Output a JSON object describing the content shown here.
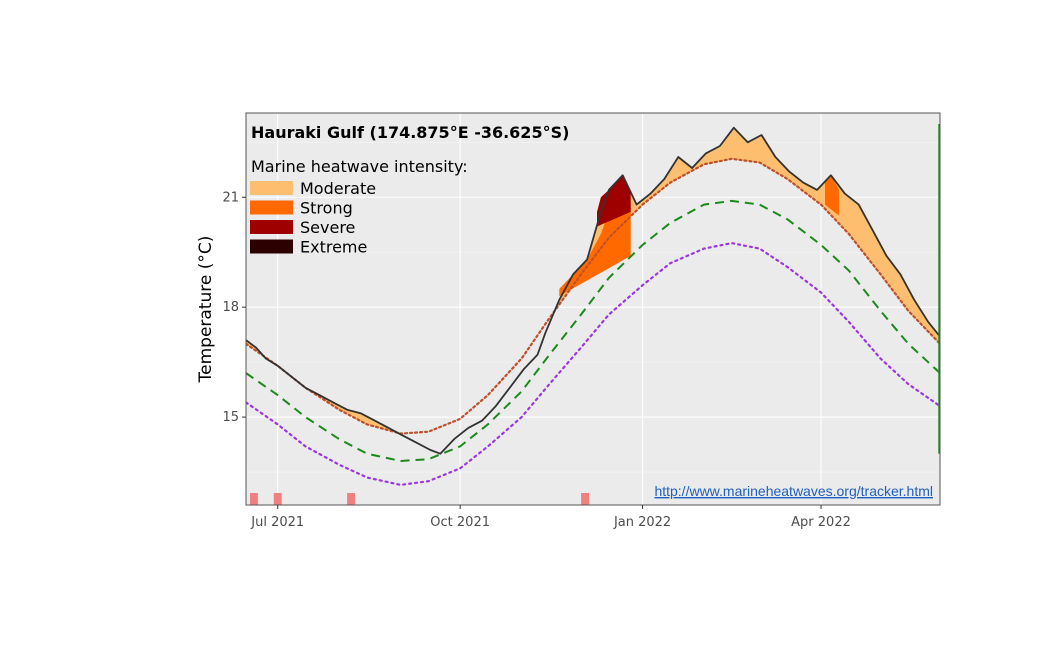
{
  "chart_data": {
    "type": "area",
    "title": "Hauraki Gulf (174.875°E -36.625°S)",
    "xlabel": "",
    "ylabel": "Temperature (°C)",
    "x_start": "2021-06-15",
    "x_end": "2022-05-31",
    "ylim": [
      12.6,
      23.3
    ],
    "yticks": [
      15,
      18,
      21
    ],
    "xticks": [
      {
        "date": "2021-07-01",
        "label": "Jul 2021"
      },
      {
        "date": "2021-10-01",
        "label": "Oct 2021"
      },
      {
        "date": "2022-01-01",
        "label": "Jan 2022"
      },
      {
        "date": "2022-04-01",
        "label": "Apr 2022"
      }
    ],
    "grid": true,
    "legend": {
      "title": "Marine heatwave intensity:",
      "position": "top-left",
      "entries": [
        {
          "label": "Moderate",
          "color": "#fdbf6f"
        },
        {
          "label": "Strong",
          "color": "#ff6900"
        },
        {
          "label": "Severe",
          "color": "#9e0000"
        },
        {
          "label": "Extreme",
          "color": "#2d0000"
        }
      ]
    },
    "colors": {
      "moderate": "#fdbf6f",
      "strong": "#ff6900",
      "severe": "#9e0000",
      "extreme": "#2d0000",
      "temperature": "#333333",
      "threshold": "#c0502a",
      "climatology": "#1b8a1b",
      "cold_threshold": "#9b37e0",
      "event_marker": "#f08080",
      "panel": "#ebebeb",
      "vertical_line": "#1b8a1b"
    },
    "series": [
      {
        "role": "temperature",
        "points": [
          [
            "2021-06-15",
            17.1
          ],
          [
            "2021-06-20",
            16.9
          ],
          [
            "2021-06-25",
            16.6
          ],
          [
            "2021-07-01",
            16.4
          ],
          [
            "2021-07-08",
            16.1
          ],
          [
            "2021-07-15",
            15.8
          ],
          [
            "2021-07-22",
            15.6
          ],
          [
            "2021-07-29",
            15.4
          ],
          [
            "2021-08-05",
            15.2
          ],
          [
            "2021-08-12",
            15.1
          ],
          [
            "2021-08-19",
            14.9
          ],
          [
            "2021-08-26",
            14.7
          ],
          [
            "2021-09-02",
            14.5
          ],
          [
            "2021-09-09",
            14.3
          ],
          [
            "2021-09-16",
            14.1
          ],
          [
            "2021-09-21",
            14.0
          ],
          [
            "2021-09-28",
            14.4
          ],
          [
            "2021-10-05",
            14.7
          ],
          [
            "2021-10-12",
            14.9
          ],
          [
            "2021-10-19",
            15.3
          ],
          [
            "2021-10-26",
            15.8
          ],
          [
            "2021-11-02",
            16.3
          ],
          [
            "2021-11-09",
            16.7
          ],
          [
            "2021-11-13",
            17.3
          ],
          [
            "2021-11-20",
            18.2
          ],
          [
            "2021-11-27",
            18.9
          ],
          [
            "2021-12-04",
            19.3
          ],
          [
            "2021-12-11",
            20.6
          ],
          [
            "2021-12-15",
            21.2
          ],
          [
            "2021-12-22",
            21.6
          ],
          [
            "2021-12-29",
            20.8
          ],
          [
            "2022-01-05",
            21.1
          ],
          [
            "2022-01-12",
            21.5
          ],
          [
            "2022-01-19",
            22.1
          ],
          [
            "2022-01-26",
            21.8
          ],
          [
            "2022-02-02",
            22.2
          ],
          [
            "2022-02-09",
            22.4
          ],
          [
            "2022-02-16",
            22.9
          ],
          [
            "2022-02-23",
            22.5
          ],
          [
            "2022-03-02",
            22.7
          ],
          [
            "2022-03-09",
            22.1
          ],
          [
            "2022-03-16",
            21.7
          ],
          [
            "2022-03-23",
            21.4
          ],
          [
            "2022-03-30",
            21.2
          ],
          [
            "2022-04-06",
            21.6
          ],
          [
            "2022-04-13",
            21.1
          ],
          [
            "2022-04-20",
            20.8
          ],
          [
            "2022-04-27",
            20.1
          ],
          [
            "2022-05-04",
            19.4
          ],
          [
            "2022-05-11",
            18.9
          ],
          [
            "2022-05-18",
            18.2
          ],
          [
            "2022-05-25",
            17.6
          ],
          [
            "2022-05-31",
            17.2
          ]
        ]
      },
      {
        "role": "threshold",
        "points": [
          [
            "2021-06-15",
            17.0
          ],
          [
            "2021-07-01",
            16.4
          ],
          [
            "2021-07-15",
            15.8
          ],
          [
            "2021-08-01",
            15.2
          ],
          [
            "2021-08-15",
            14.8
          ],
          [
            "2021-09-01",
            14.55
          ],
          [
            "2021-09-15",
            14.6
          ],
          [
            "2021-10-01",
            14.95
          ],
          [
            "2021-10-15",
            15.6
          ],
          [
            "2021-11-01",
            16.6
          ],
          [
            "2021-11-15",
            17.7
          ],
          [
            "2021-12-01",
            18.9
          ],
          [
            "2021-12-15",
            19.9
          ],
          [
            "2022-01-01",
            20.8
          ],
          [
            "2022-01-15",
            21.4
          ],
          [
            "2022-02-01",
            21.9
          ],
          [
            "2022-02-15",
            22.05
          ],
          [
            "2022-03-01",
            21.95
          ],
          [
            "2022-03-15",
            21.5
          ],
          [
            "2022-04-01",
            20.8
          ],
          [
            "2022-04-15",
            20.0
          ],
          [
            "2022-05-01",
            18.9
          ],
          [
            "2022-05-15",
            17.9
          ],
          [
            "2022-05-31",
            17.0
          ]
        ]
      },
      {
        "role": "climatology",
        "points": [
          [
            "2021-06-15",
            16.2
          ],
          [
            "2021-07-01",
            15.6
          ],
          [
            "2021-07-15",
            15.0
          ],
          [
            "2021-08-01",
            14.4
          ],
          [
            "2021-08-15",
            14.0
          ],
          [
            "2021-09-01",
            13.8
          ],
          [
            "2021-09-15",
            13.85
          ],
          [
            "2021-10-01",
            14.2
          ],
          [
            "2021-10-15",
            14.8
          ],
          [
            "2021-11-01",
            15.7
          ],
          [
            "2021-11-15",
            16.7
          ],
          [
            "2021-12-01",
            17.8
          ],
          [
            "2021-12-15",
            18.8
          ],
          [
            "2022-01-01",
            19.7
          ],
          [
            "2022-01-15",
            20.3
          ],
          [
            "2022-02-01",
            20.8
          ],
          [
            "2022-02-15",
            20.9
          ],
          [
            "2022-03-01",
            20.8
          ],
          [
            "2022-03-15",
            20.4
          ],
          [
            "2022-04-01",
            19.7
          ],
          [
            "2022-04-15",
            19.0
          ],
          [
            "2022-05-01",
            17.9
          ],
          [
            "2022-05-15",
            17.0
          ],
          [
            "2022-05-31",
            16.2
          ]
        ]
      },
      {
        "role": "cold_threshold",
        "points": [
          [
            "2021-06-15",
            15.4
          ],
          [
            "2021-07-01",
            14.8
          ],
          [
            "2021-07-15",
            14.2
          ],
          [
            "2021-08-01",
            13.7
          ],
          [
            "2021-08-15",
            13.35
          ],
          [
            "2021-09-01",
            13.15
          ],
          [
            "2021-09-15",
            13.25
          ],
          [
            "2021-10-01",
            13.6
          ],
          [
            "2021-10-15",
            14.2
          ],
          [
            "2021-11-01",
            15.0
          ],
          [
            "2021-11-15",
            15.9
          ],
          [
            "2021-12-01",
            16.9
          ],
          [
            "2021-12-15",
            17.8
          ],
          [
            "2022-01-01",
            18.6
          ],
          [
            "2022-01-15",
            19.2
          ],
          [
            "2022-02-01",
            19.6
          ],
          [
            "2022-02-15",
            19.75
          ],
          [
            "2022-03-01",
            19.6
          ],
          [
            "2022-03-15",
            19.1
          ],
          [
            "2022-04-01",
            18.4
          ],
          [
            "2022-04-15",
            17.6
          ],
          [
            "2022-05-01",
            16.6
          ],
          [
            "2022-05-15",
            15.9
          ],
          [
            "2022-05-31",
            15.3
          ]
        ]
      }
    ],
    "strong_band": [
      [
        "2021-11-20",
        18.5
      ],
      [
        "2021-11-27",
        18.9
      ],
      [
        "2021-12-04",
        19.3
      ],
      [
        "2021-12-11",
        20.0
      ],
      [
        "2021-12-15",
        20.6
      ],
      [
        "2021-12-22",
        21.0
      ],
      [
        "2021-12-26",
        20.8
      ]
    ],
    "strong_base": [
      [
        "2021-11-20",
        18.3
      ],
      [
        "2021-12-26",
        19.4
      ]
    ],
    "severe_band": [
      [
        "2021-12-09",
        20.6
      ],
      [
        "2021-12-11",
        21.0
      ],
      [
        "2021-12-15",
        21.2
      ],
      [
        "2021-12-22",
        21.6
      ],
      [
        "2021-12-26",
        21.1
      ]
    ],
    "severe_base": [
      [
        "2021-12-09",
        20.2
      ],
      [
        "2021-12-26",
        20.6
      ]
    ],
    "strong_band_2": [
      [
        "2022-04-03",
        21.4
      ],
      [
        "2022-04-06",
        21.6
      ],
      [
        "2022-04-10",
        21.2
      ]
    ],
    "strong_base_2": [
      [
        "2022-04-03",
        20.8
      ],
      [
        "2022-04-10",
        20.5
      ]
    ],
    "event_markers": [
      {
        "start": "2021-06-17",
        "end": "2021-06-21"
      },
      {
        "start": "2021-06-29",
        "end": "2021-07-03"
      },
      {
        "start": "2021-08-05",
        "end": "2021-08-09"
      },
      {
        "start": "2021-12-01",
        "end": "2021-12-05"
      }
    ],
    "vertical_line_date": "2022-05-31",
    "source_link": "http://www.marineheatwaves.org/tracker.html"
  }
}
